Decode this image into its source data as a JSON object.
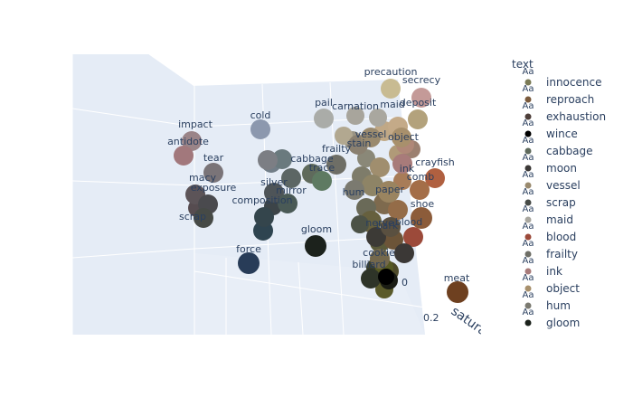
{
  "chart_data": {
    "type": "scatter",
    "projection": "3d",
    "legend_title": "text",
    "legend_placement": "right",
    "legend_item_symbol_text": "Aa",
    "axis": {
      "title": "saturation",
      "ticks": [
        "0",
        "0.2"
      ]
    },
    "legend": [
      {
        "name": "innocence",
        "color": "#7a7a55"
      },
      {
        "name": "reproach",
        "color": "#7a5a3c"
      },
      {
        "name": "exhaustion",
        "color": "#4e3f3a"
      },
      {
        "name": "wince",
        "color": "#000000"
      },
      {
        "name": "cabbage",
        "color": "#5f6a5c"
      },
      {
        "name": "moon",
        "color": "#3b3836"
      },
      {
        "name": "vessel",
        "color": "#9a8a6e"
      },
      {
        "name": "scrap",
        "color": "#464a46"
      },
      {
        "name": "maid",
        "color": "#a9a79f"
      },
      {
        "name": "blood",
        "color": "#9c4a3a"
      },
      {
        "name": "frailty",
        "color": "#6e6e66"
      },
      {
        "name": "ink",
        "color": "#a87b7a"
      },
      {
        "name": "object",
        "color": "#a8906c"
      },
      {
        "name": "hum",
        "color": "#7b7a70"
      },
      {
        "name": "gloom",
        "color": "#1c221c"
      }
    ],
    "points": [
      {
        "text": "precaution",
        "color": "#c8bb92"
      },
      {
        "text": "secrecy",
        "color": "#c49a98"
      },
      {
        "text": "pail",
        "color": "#aaaca8"
      },
      {
        "text": "carnation",
        "color": "#a8a59c"
      },
      {
        "text": "maid",
        "color": "#a9a79f"
      },
      {
        "text": "deposit",
        "color": "#b3a27c"
      },
      {
        "text": "cold",
        "color": "#8c98ae"
      },
      {
        "text": "impact",
        "color": "#9a8488"
      },
      {
        "text": "antidote",
        "color": "#a2787c"
      },
      {
        "text": "tear",
        "color": "#7a7478"
      },
      {
        "text": "cabbage",
        "color": "#5f6a5c"
      },
      {
        "text": "trace",
        "color": "#5e7a62"
      },
      {
        "text": "frailty",
        "color": "#6e6e66"
      },
      {
        "text": "crayfish",
        "color": "#b06040"
      },
      {
        "text": "macy",
        "color": "#5c5458"
      },
      {
        "text": "exposure",
        "color": "#4a4a4e"
      },
      {
        "text": "silver",
        "color": "#4e5458"
      },
      {
        "text": "mirror",
        "color": "#4a5a56"
      },
      {
        "text": "scrap",
        "color": "#464a46"
      },
      {
        "text": "composition",
        "color": "#34454c"
      },
      {
        "text": "gloom",
        "color": "#1c221c"
      },
      {
        "text": "force",
        "color": "#283c58"
      },
      {
        "text": "billiard",
        "color": "#2e3428"
      },
      {
        "text": "nerve",
        "color": "#3c3a36"
      },
      {
        "text": "bark",
        "color": "#5a5040"
      },
      {
        "text": "cookie",
        "color": "#74684c"
      },
      {
        "text": "meat",
        "color": "#6e4020"
      },
      {
        "text": "stain",
        "color": "#8a8070"
      },
      {
        "text": "vessel",
        "color": "#9a8a6e"
      },
      {
        "text": "paper",
        "color": "#9a8460"
      },
      {
        "text": "comb",
        "color": "#a46e48"
      },
      {
        "text": "shoe",
        "color": "#8c5c3a"
      },
      {
        "text": "blood",
        "color": "#9c4a3a"
      },
      {
        "text": "hum",
        "color": "#7b7a70"
      },
      {
        "text": "ink",
        "color": "#a87b7a"
      },
      {
        "text": "object",
        "color": "#a8906c"
      },
      {
        "text": "wince",
        "color": "#000000"
      },
      {
        "text": "moon",
        "color": "#3b3836"
      }
    ]
  }
}
